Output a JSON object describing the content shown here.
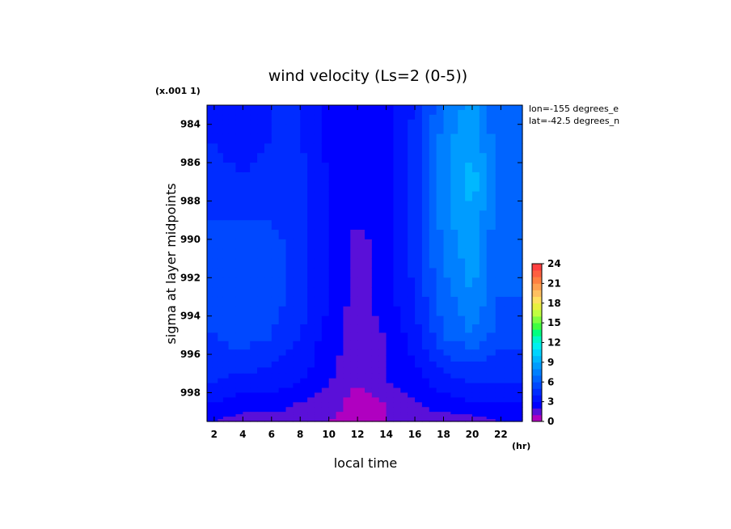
{
  "chart_data": {
    "type": "heatmap",
    "title": "wind velocity (Ls=2 (0-5))",
    "xlabel": "local time",
    "ylabel": "sigma at layer midpoints",
    "x_unit": "(hr)",
    "y_multiplier": "(x.001 1)",
    "info_lines": [
      "lon=-155 degrees_e",
      "lat=-42.5 degrees_n"
    ],
    "xlim": [
      1.5,
      23.5
    ],
    "ylim": [
      983,
      999.5
    ],
    "x_ticks": [
      2,
      4,
      6,
      8,
      10,
      12,
      14,
      16,
      18,
      20,
      22
    ],
    "x_tick_labels": [
      "2",
      "4",
      "6",
      "8",
      "10",
      "12",
      "14",
      "16",
      "18",
      "20",
      "22"
    ],
    "y_ticks": [
      984,
      986,
      988,
      990,
      992,
      994,
      996,
      998
    ],
    "y_tick_labels": [
      "984",
      "986",
      "988",
      "990",
      "992",
      "994",
      "996",
      "998"
    ],
    "x": [
      2,
      4,
      6,
      8,
      10,
      12,
      14,
      16,
      18,
      20,
      22
    ],
    "y": [
      983.0,
      985.0,
      987.0,
      989.0,
      991.0,
      993.0,
      995.0,
      996.5,
      997.5,
      998.5,
      999.5
    ],
    "z": [
      [
        3.5,
        3.0,
        4.0,
        4.0,
        2.5,
        2.0,
        2.5,
        4.0,
        7.0,
        8.5,
        6.0
      ],
      [
        4.0,
        3.5,
        4.0,
        4.0,
        2.5,
        2.0,
        2.5,
        4.5,
        7.5,
        9.0,
        6.0
      ],
      [
        4.5,
        4.0,
        4.5,
        4.5,
        3.0,
        2.0,
        2.5,
        4.5,
        7.5,
        9.5,
        6.5
      ],
      [
        5.0,
        5.0,
        5.0,
        4.5,
        3.0,
        2.0,
        2.5,
        4.5,
        7.5,
        9.0,
        6.0
      ],
      [
        5.0,
        5.0,
        5.5,
        4.5,
        3.0,
        1.5,
        2.5,
        4.5,
        7.0,
        8.5,
        6.0
      ],
      [
        5.0,
        5.0,
        5.5,
        4.5,
        3.0,
        1.5,
        2.5,
        4.0,
        6.5,
        8.0,
        6.0
      ],
      [
        5.0,
        5.5,
        5.0,
        4.0,
        2.5,
        1.5,
        2.0,
        3.5,
        6.0,
        7.0,
        5.5
      ],
      [
        4.5,
        4.5,
        4.0,
        3.5,
        2.5,
        1.0,
        2.0,
        3.0,
        4.5,
        5.0,
        4.5
      ],
      [
        4.0,
        3.5,
        3.5,
        3.0,
        2.0,
        1.0,
        2.0,
        2.5,
        3.5,
        4.0,
        4.0
      ],
      [
        3.0,
        2.5,
        2.5,
        2.0,
        1.5,
        0.5,
        1.0,
        2.0,
        2.5,
        3.0,
        3.0
      ],
      [
        2.0,
        1.5,
        1.5,
        1.5,
        1.0,
        0.5,
        1.0,
        1.5,
        1.5,
        1.5,
        2.0
      ]
    ],
    "colorbar": {
      "min": 0,
      "max": 24,
      "ticks": [
        "0",
        "3",
        "6",
        "9",
        "12",
        "15",
        "18",
        "21",
        "24"
      ],
      "colors": [
        "#b000c0",
        "#5a10d8",
        "#0000ff",
        "#0014ff",
        "#002cff",
        "#0048ff",
        "#0064ff",
        "#0080ff",
        "#009cff",
        "#00b8ff",
        "#00d4ff",
        "#00f0f0",
        "#00f8c8",
        "#00ff80",
        "#40ff40",
        "#80ff40",
        "#c0ff40",
        "#e8f040",
        "#ffe060",
        "#ffc060",
        "#ffa050",
        "#ff8040",
        "#ff6040",
        "#ff4040"
      ]
    },
    "grid": false,
    "legend": "right (colorbar)"
  }
}
